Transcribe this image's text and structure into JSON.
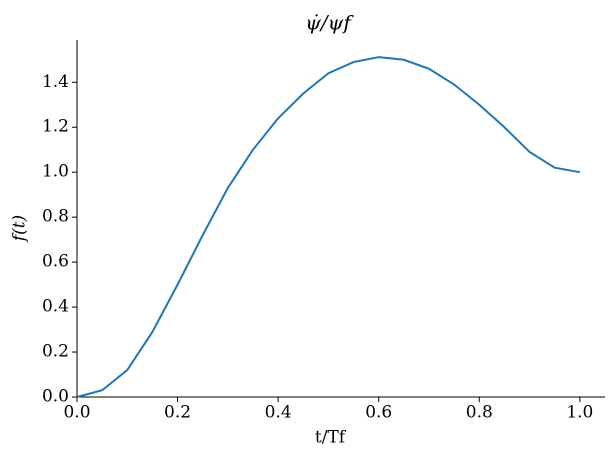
{
  "chart_data": {
    "type": "line",
    "title": "ψ̇/ψf",
    "xlabel": "t/Tf",
    "ylabel": "f(t)",
    "x": [
      0,
      0.05,
      0.1,
      0.15,
      0.2,
      0.25,
      0.3,
      0.35,
      0.4,
      0.45,
      0.5,
      0.55,
      0.6,
      0.65,
      0.7,
      0.75,
      0.8,
      0.85,
      0.9,
      0.95,
      1.0
    ],
    "series": [
      {
        "color": "#1f77b4",
        "values": [
          0,
          0.03,
          0.12,
          0.29,
          0.5,
          0.72,
          0.93,
          1.1,
          1.24,
          1.35,
          1.44,
          1.49,
          1.512,
          1.5,
          1.46,
          1.39,
          1.3,
          1.2,
          1.09,
          1.02,
          1.0
        ]
      }
    ],
    "xlim": [
      0,
      1.05
    ],
    "ylim": [
      0,
      1.588
    ],
    "xticks": [
      {
        "value": 0,
        "label": "0.0"
      },
      {
        "value": 0.2,
        "label": "0.2"
      },
      {
        "value": 0.4,
        "label": "0.4"
      },
      {
        "value": 0.6,
        "label": "0.6"
      },
      {
        "value": 0.8,
        "label": "0.8"
      },
      {
        "value": 1.0,
        "label": "1.0"
      }
    ],
    "yticks": [
      {
        "value": 0,
        "label": "0.0"
      },
      {
        "value": 0.2,
        "label": "0.2"
      },
      {
        "value": 0.4,
        "label": "0.4"
      },
      {
        "value": 0.6,
        "label": "0.6"
      },
      {
        "value": 0.8,
        "label": "0.8"
      },
      {
        "value": 1.0,
        "label": "1.0"
      },
      {
        "value": 1.2,
        "label": "1.2"
      },
      {
        "value": 1.4,
        "label": "1.4"
      }
    ]
  }
}
